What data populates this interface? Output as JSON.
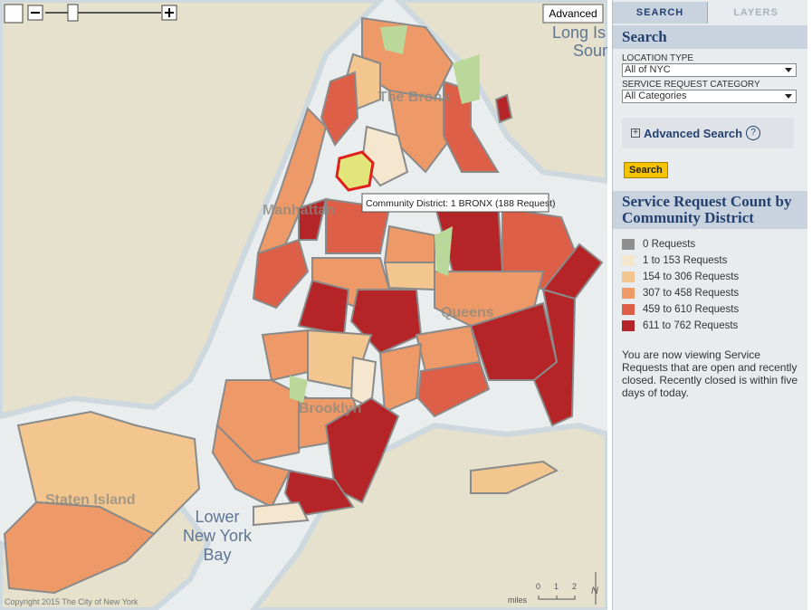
{
  "map": {
    "advanced_button": "Advanced",
    "water_labels": {
      "sound_line1": "Long Is",
      "sound_line2": "Soun",
      "bay_line1": "Lower",
      "bay_line2": "New York",
      "bay_line3": "Bay"
    },
    "borough_labels": {
      "bronx": "The Bronx",
      "manhattan": "Manhattan",
      "queens": "Queens",
      "brooklyn": "Brooklyn",
      "staten_island": "Staten Island"
    },
    "tooltip": "Community District: 1 BRONX (188 Request)",
    "copyright": "Copyright 2015 The City of New York",
    "scale": {
      "unit": "miles",
      "ticks": [
        "0",
        "1",
        "2"
      ]
    },
    "north": "N"
  },
  "sidebar": {
    "tabs": [
      "SEARCH",
      "LAYERS"
    ],
    "search": {
      "title": "Search",
      "location_label": "LOCATION TYPE",
      "location_value": "All of NYC",
      "category_label": "SERVICE REQUEST CATEGORY",
      "category_value": "All Categories",
      "advanced": "Advanced Search",
      "help": "?",
      "button": "Search"
    },
    "legend": {
      "title": "Service Request Count by Community District",
      "items": [
        {
          "label": "0 Requests",
          "color": "#8e8e8e"
        },
        {
          "label": "1 to 153 Requests",
          "color": "#f4e6cf"
        },
        {
          "label": "154 to 306 Requests",
          "color": "#f2c68e"
        },
        {
          "label": "307 to 458 Requests",
          "color": "#ee9968"
        },
        {
          "label": "459 to 610 Requests",
          "color": "#dd5f47"
        },
        {
          "label": "611 to 762 Requests",
          "color": "#b52426"
        }
      ]
    },
    "note": "You are now viewing Service Requests that are open and recently closed. Recently closed is within five days of today."
  }
}
